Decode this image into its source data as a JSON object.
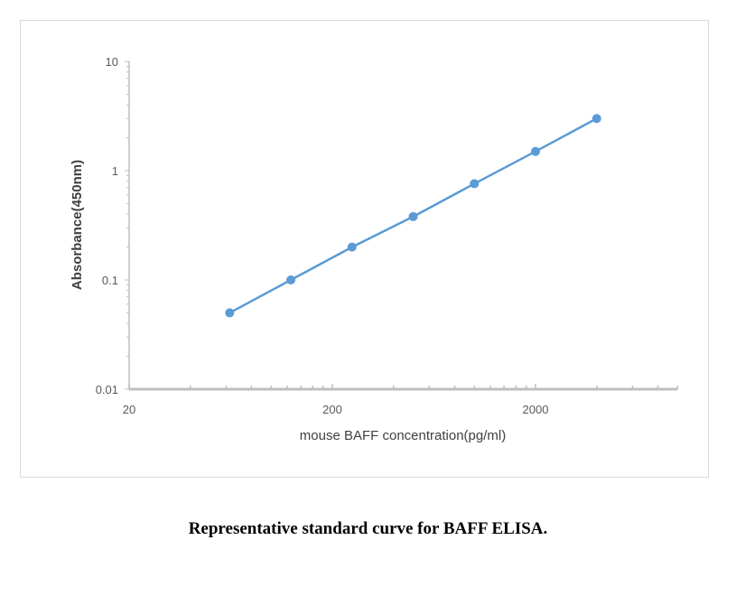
{
  "chart_data": {
    "type": "line",
    "title": "",
    "xlabel": "mouse BAFF concentration(pg/ml)",
    "ylabel": "Absorbance(450nm)",
    "x_scale": "log",
    "y_scale": "log",
    "xlim": [
      20,
      10000
    ],
    "ylim": [
      0.01,
      10
    ],
    "x_ticks": [
      "20",
      "200",
      "2000"
    ],
    "y_ticks": [
      "0.01",
      "0.1",
      "1",
      "10"
    ],
    "grid": false,
    "legend": "none",
    "series": [
      {
        "x": [
          62.5,
          125,
          250,
          500,
          1000,
          2000,
          4000
        ],
        "y": [
          0.05,
          0.1,
          0.2,
          0.38,
          0.76,
          1.5,
          3.0
        ],
        "color": "#5b9bd5",
        "markers": true
      }
    ]
  },
  "caption": "Representative standard curve for BAFF ELISA."
}
